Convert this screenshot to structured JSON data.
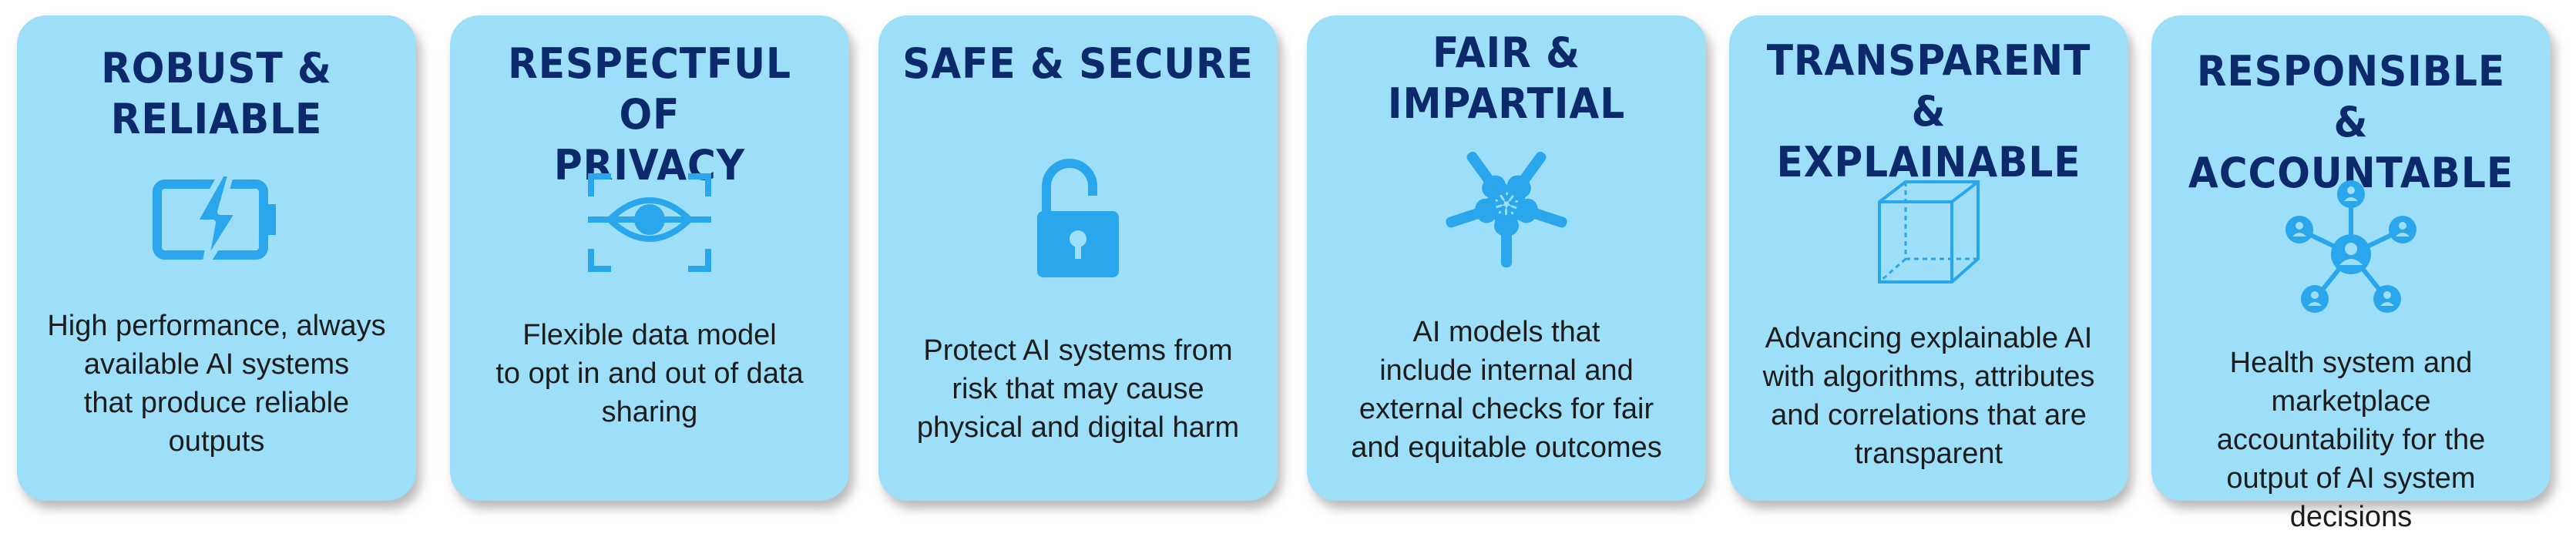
{
  "cards": [
    {
      "title": "ROBUST &\nRELIABLE",
      "icon": "battery-charging-icon",
      "description": "High performance, always\navailable AI systems\nthat produce reliable\noutputs"
    },
    {
      "title": "RESPECTFUL OF\nPRIVACY",
      "icon": "eye-scan-icon",
      "description": "Flexible data model\nto opt in and out of data\nsharing"
    },
    {
      "title": "SAFE & SECURE",
      "icon": "unlocked-padlock-icon",
      "description": "Protect AI systems from\nrisk that may cause\nphysical and digital harm"
    },
    {
      "title": "FAIR & IMPARTIAL",
      "icon": "joined-hands-icon",
      "description": "AI models that\ninclude internal and\nexternal checks  for fair\nand equitable outcomes"
    },
    {
      "title": "TRANSPARENT &\nEXPLAINABLE",
      "icon": "transparent-cube-icon",
      "description": "Advancing explainable AI\nwith algorithms, attributes\nand correlations that are\ntransparent"
    },
    {
      "title": "RESPONSIBLE &\nACCOUNTABLE",
      "icon": "people-network-icon",
      "description": "Health system and\nmarketplace\naccountability for the\noutput of AI system\ndecisions"
    }
  ],
  "colors": {
    "card": "#9ddff9",
    "title": "#0c2a6b",
    "icon": "#2aa6ec",
    "text": "#1c1c1c"
  }
}
